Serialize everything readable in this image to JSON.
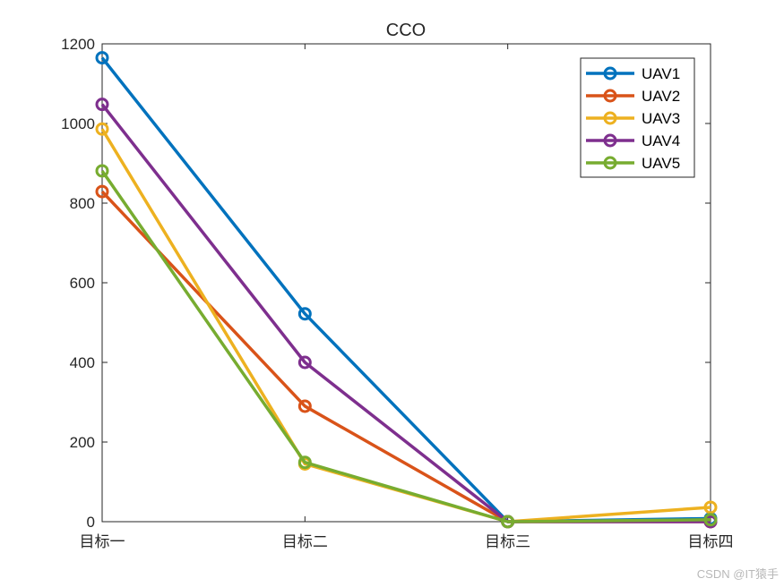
{
  "chart_data": {
    "type": "line",
    "title": "CCO",
    "xlabel": "",
    "ylabel": "",
    "categories": [
      "目标一",
      "目标二",
      "目标三",
      "目标四"
    ],
    "ylim": [
      0,
      1200
    ],
    "yticks": [
      0,
      200,
      400,
      600,
      800,
      1000,
      1200
    ],
    "grid": false,
    "legend_position": "top-right",
    "series": [
      {
        "name": "UAV1",
        "color": "#0072BD",
        "values": [
          1165,
          522,
          0,
          8
        ]
      },
      {
        "name": "UAV2",
        "color": "#D95319",
        "values": [
          829,
          290,
          0,
          0
        ]
      },
      {
        "name": "UAV3",
        "color": "#EDB120",
        "values": [
          986,
          145,
          0,
          36
        ]
      },
      {
        "name": "UAV4",
        "color": "#7E2F8E",
        "values": [
          1048,
          400,
          0,
          0
        ]
      },
      {
        "name": "UAV5",
        "color": "#77AC30",
        "values": [
          881,
          149,
          0,
          5
        ]
      }
    ]
  },
  "watermark": "CSDN @IT猿手"
}
